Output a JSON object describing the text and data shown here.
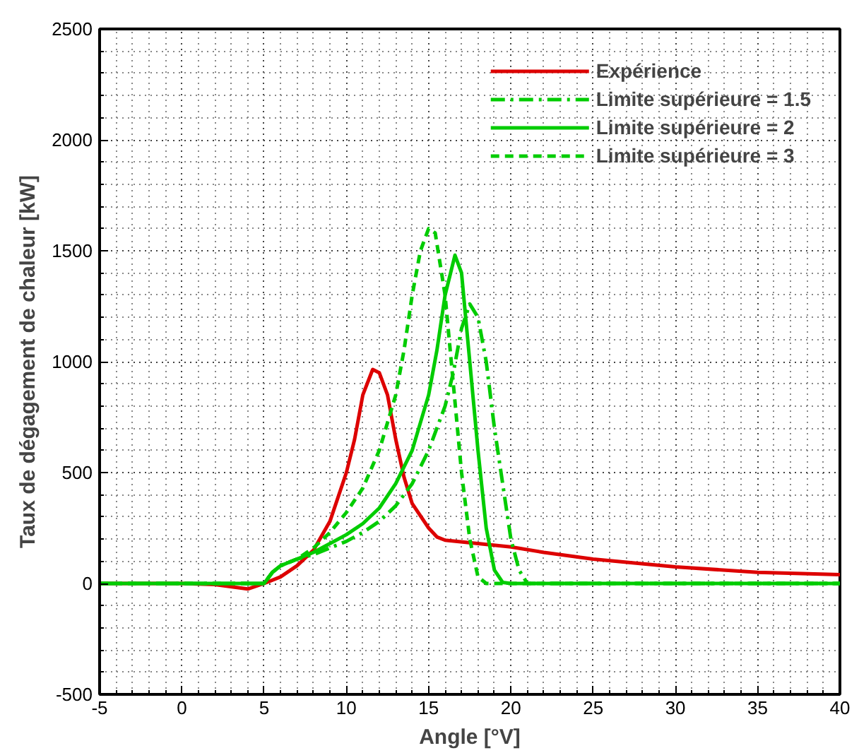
{
  "chart_data": {
    "type": "line",
    "xlabel": "Angle [°V]",
    "ylabel": "Taux de dégagement de chaleur [kW]",
    "xlim": [
      -5,
      40
    ],
    "ylim": [
      -500,
      2500
    ],
    "xticks": [
      -5,
      0,
      5,
      10,
      15,
      20,
      25,
      30,
      35,
      40
    ],
    "yticks": [
      -500,
      0,
      500,
      1000,
      1500,
      2000,
      2500
    ],
    "grid": true,
    "legend": "top right",
    "marker": "none",
    "series": [
      {
        "name": "Expérience",
        "color": "#dd0000",
        "line_style": "solid",
        "x": [
          -5,
          0,
          2,
          4,
          5,
          6,
          7,
          8,
          9,
          10,
          10.5,
          11,
          11.6,
          12,
          12.5,
          13,
          13.5,
          14,
          15,
          15.5,
          16,
          18,
          20,
          22,
          25,
          30,
          35,
          40
        ],
        "values": [
          0,
          0,
          -5,
          -25,
          0,
          30,
          80,
          150,
          280,
          500,
          650,
          850,
          965,
          950,
          850,
          650,
          480,
          360,
          250,
          210,
          195,
          180,
          165,
          140,
          110,
          75,
          50,
          40
        ]
      },
      {
        "name": "Limite supérieure = 1.5",
        "color": "#00cc00",
        "line_style": "dashdot",
        "x": [
          -5,
          0,
          5,
          5.5,
          6,
          7,
          8,
          9,
          10,
          11,
          12,
          13,
          14,
          15,
          16,
          16.5,
          17,
          17.5,
          18,
          18.5,
          19,
          19.5,
          20,
          20.5,
          21,
          40
        ],
        "values": [
          0,
          0,
          0,
          50,
          80,
          110,
          130,
          160,
          190,
          230,
          280,
          350,
          450,
          600,
          800,
          950,
          1150,
          1260,
          1200,
          1000,
          700,
          450,
          200,
          60,
          0,
          0
        ]
      },
      {
        "name": "Limite supérieure = 2",
        "color": "#00cc00",
        "line_style": "solid",
        "x": [
          -5,
          0,
          5,
          5.5,
          6,
          7,
          8,
          9,
          10,
          11,
          12,
          13,
          14,
          15,
          15.5,
          16,
          16.6,
          17,
          17.5,
          18,
          18.5,
          19,
          19.5,
          20,
          40
        ],
        "values": [
          0,
          0,
          0,
          50,
          80,
          110,
          140,
          180,
          220,
          270,
          340,
          450,
          600,
          850,
          1050,
          1300,
          1480,
          1400,
          1000,
          600,
          250,
          60,
          5,
          0,
          0
        ]
      },
      {
        "name": "Limite supérieure = 3",
        "color": "#00cc00",
        "line_style": "dashed",
        "x": [
          -5,
          0,
          5,
          5.5,
          6,
          7,
          8,
          9,
          10,
          11,
          12,
          13,
          13.5,
          14,
          14.5,
          15,
          15.4,
          16,
          16.5,
          17,
          17.5,
          18,
          18.5,
          40
        ],
        "values": [
          0,
          0,
          0,
          50,
          80,
          110,
          160,
          230,
          320,
          430,
          600,
          850,
          1050,
          1300,
          1500,
          1600,
          1580,
          1300,
          900,
          500,
          200,
          30,
          0,
          0
        ]
      }
    ]
  }
}
